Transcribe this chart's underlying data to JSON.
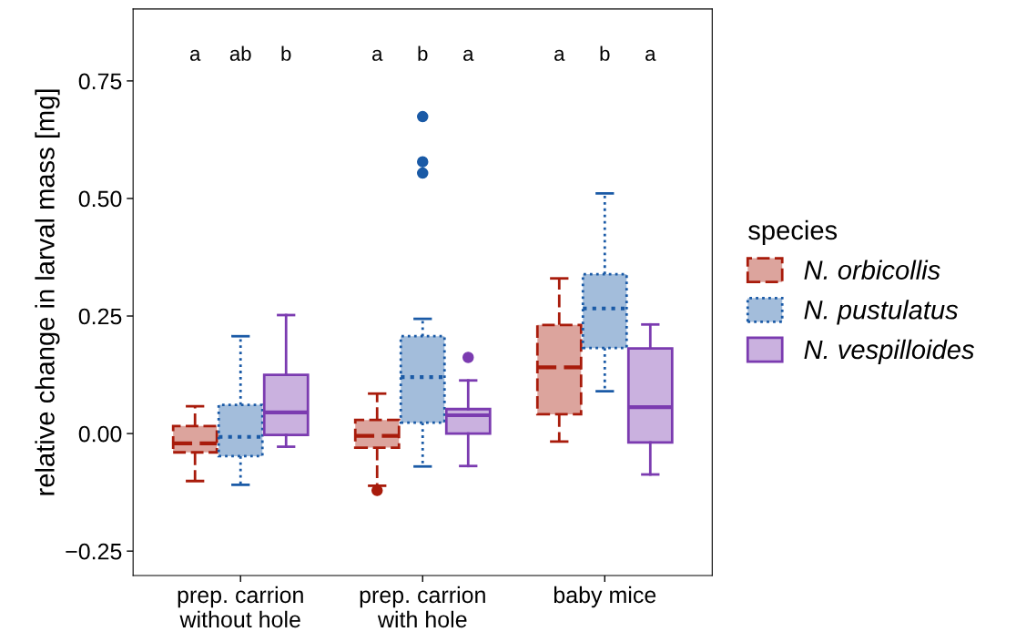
{
  "chart_data": {
    "type": "box",
    "ylabel": "relative change in larval mass [mg]",
    "legend_title": "species",
    "categories": [
      "prep. carrion\nwithout hole",
      "prep. carrion\nwith hole",
      "baby mice"
    ],
    "ylim": [
      -0.302,
      0.903
    ],
    "yticks": [
      {
        "value": -0.25,
        "label": "−0.25"
      },
      {
        "value": 0,
        "label": "0.00"
      },
      {
        "value": 0.25,
        "label": "0.25"
      },
      {
        "value": 0.5,
        "label": "0.50"
      },
      {
        "value": 0.75,
        "label": "0.75"
      }
    ],
    "grid": false,
    "legend": "right",
    "marker": "circle",
    "series": [
      {
        "name": "N. orbicollis",
        "color": "#a81b0b",
        "line_style": "dashed",
        "boxes": [
          {
            "low": -0.101,
            "q1": -0.04,
            "median": -0.021,
            "q3": 0.016,
            "high": 0.058
          },
          {
            "low": -0.111,
            "q1": -0.03,
            "median": -0.005,
            "q3": 0.029,
            "high": 0.085,
            "outliers": [
              -0.121
            ]
          },
          {
            "low": -0.017,
            "q1": 0.041,
            "median": 0.141,
            "q3": 0.231,
            "high": 0.33
          }
        ]
      },
      {
        "name": "N. pustulatus",
        "color": "#1a5aa6",
        "line_style": "dotted",
        "boxes": [
          {
            "low": -0.109,
            "q1": -0.048,
            "median": -0.007,
            "q3": 0.061,
            "high": 0.207
          },
          {
            "low": -0.07,
            "q1": 0.023,
            "median": 0.12,
            "q3": 0.207,
            "high": 0.244,
            "outliers": [
              0.554,
              0.578,
              0.674
            ]
          },
          {
            "low": 0.09,
            "q1": 0.182,
            "median": 0.266,
            "q3": 0.339,
            "high": 0.511
          }
        ]
      },
      {
        "name": "N. vespilloides",
        "color": "#7b3bb0",
        "line_style": "solid",
        "boxes": [
          {
            "low": -0.028,
            "q1": -0.003,
            "median": 0.045,
            "q3": 0.125,
            "high": 0.252
          },
          {
            "low": -0.069,
            "q1": 0.0,
            "median": 0.039,
            "q3": 0.052,
            "high": 0.113,
            "outliers": [
              0.162
            ]
          },
          {
            "low": -0.087,
            "q1": -0.019,
            "median": 0.056,
            "q3": 0.181,
            "high": 0.232
          }
        ]
      }
    ],
    "annotations": [
      "a",
      "ab",
      "b",
      "a",
      "b",
      "a",
      "a",
      "b",
      "a"
    ]
  }
}
